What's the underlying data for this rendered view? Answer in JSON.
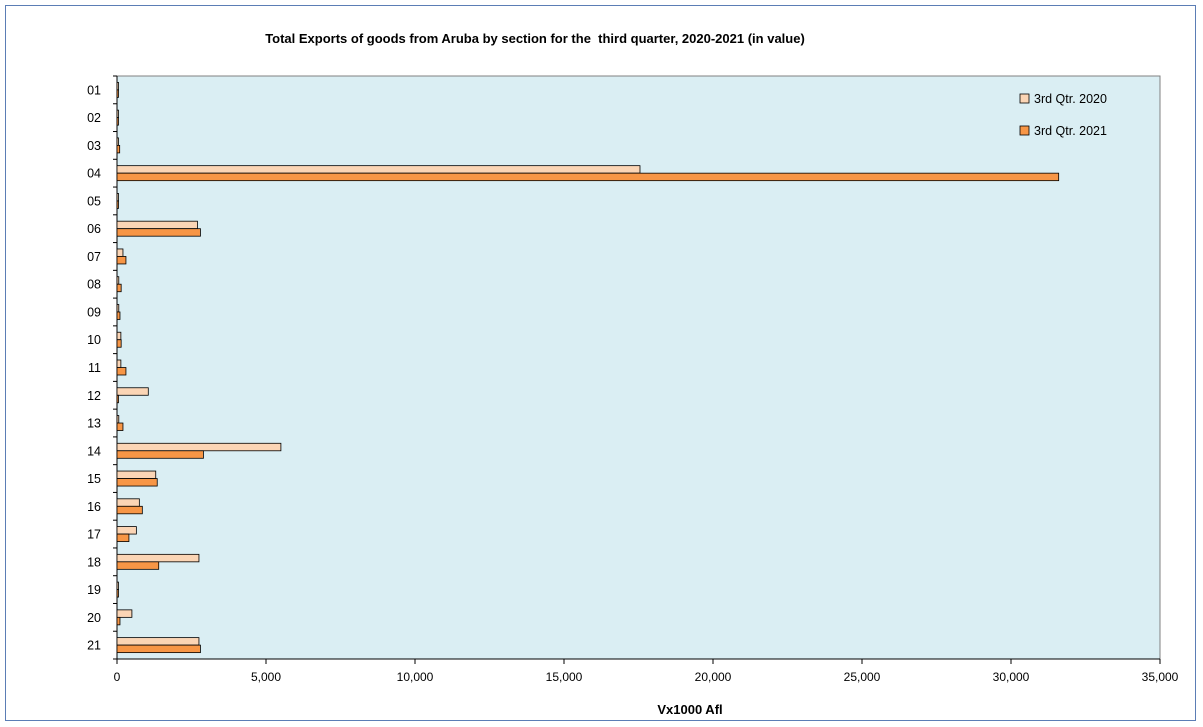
{
  "chart_data": {
    "type": "bar",
    "orientation": "horizontal",
    "title": "Total Exports of goods from Aruba by section for the  third quarter, 2020-2021 (in value)",
    "xlabel": "Vx1000 Afl",
    "ylabel": "",
    "xlim": [
      0,
      35000
    ],
    "x_ticks": [
      "0",
      "5,000",
      "10,000",
      "15,000",
      "20,000",
      "25,000",
      "30,000",
      "35,000"
    ],
    "x_tick_values": [
      0,
      5000,
      10000,
      15000,
      20000,
      25000,
      30000,
      35000
    ],
    "categories": [
      "01",
      "02",
      "03",
      "04",
      "05",
      "06",
      "07",
      "08",
      "09",
      "10",
      "11",
      "12",
      "13",
      "14",
      "15",
      "16",
      "17",
      "18",
      "19",
      "20",
      "21"
    ],
    "series": [
      {
        "name": "3rd Qtr. 2020",
        "color": "#fbd5b5",
        "values": [
          20,
          20,
          40,
          17550,
          20,
          2700,
          200,
          60,
          60,
          130,
          130,
          1050,
          60,
          5500,
          1300,
          750,
          650,
          2750,
          20,
          500,
          2750
        ]
      },
      {
        "name": "3rd Qtr. 2021",
        "color": "#f79646",
        "values": [
          30,
          30,
          90,
          31600,
          30,
          2800,
          300,
          140,
          100,
          140,
          300,
          50,
          200,
          2900,
          1350,
          850,
          400,
          1400,
          20,
          100,
          2800
        ]
      }
    ],
    "legend_position": "top-right",
    "plot_background": "#daeef3",
    "grid": false
  }
}
